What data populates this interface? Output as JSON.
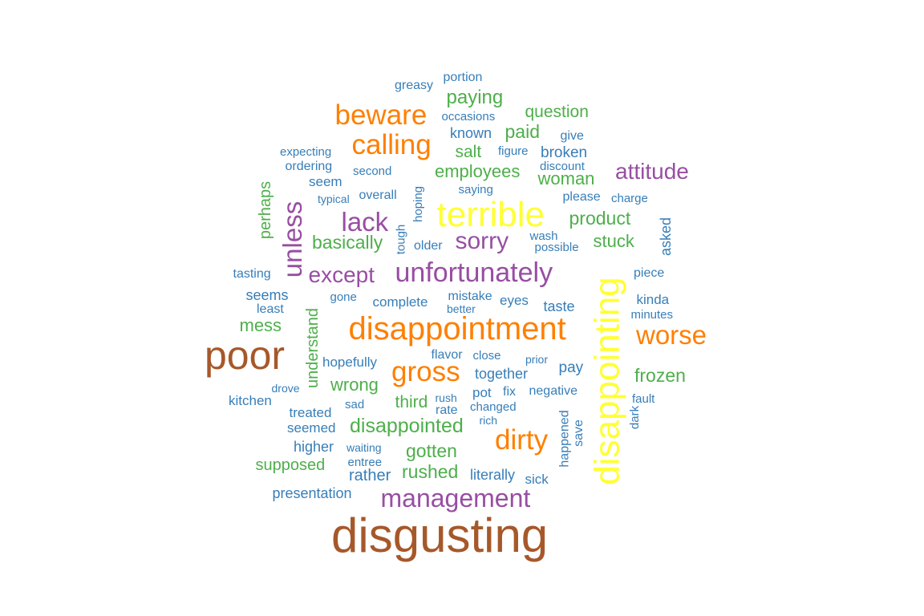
{
  "palette": {
    "brown": "#A6582A",
    "yellow": "#FFFF33",
    "orange": "#FF7F00",
    "purple": "#984EA3",
    "green": "#4DAF4A",
    "blue": "#377EB8"
  },
  "words": [
    {
      "text": "disgusting",
      "color": "brown"
    },
    {
      "text": "poor",
      "color": "brown"
    },
    {
      "text": "terrible",
      "color": "yellow"
    },
    {
      "text": "disappointing",
      "color": "yellow"
    },
    {
      "text": "disappointment",
      "color": "orange"
    },
    {
      "text": "beware",
      "color": "orange"
    },
    {
      "text": "calling",
      "color": "orange"
    },
    {
      "text": "worse",
      "color": "orange"
    },
    {
      "text": "gross",
      "color": "orange"
    },
    {
      "text": "dirty",
      "color": "orange"
    },
    {
      "text": "unfortunately",
      "color": "purple"
    },
    {
      "text": "management",
      "color": "purple"
    },
    {
      "text": "unless",
      "color": "purple"
    },
    {
      "text": "lack",
      "color": "purple"
    },
    {
      "text": "sorry",
      "color": "purple"
    },
    {
      "text": "except",
      "color": "purple"
    },
    {
      "text": "attitude",
      "color": "purple"
    },
    {
      "text": "disappointed",
      "color": "green"
    },
    {
      "text": "paying",
      "color": "green"
    },
    {
      "text": "question",
      "color": "green"
    },
    {
      "text": "paid",
      "color": "green"
    },
    {
      "text": "salt",
      "color": "green"
    },
    {
      "text": "employees",
      "color": "green"
    },
    {
      "text": "woman",
      "color": "green"
    },
    {
      "text": "product",
      "color": "green"
    },
    {
      "text": "stuck",
      "color": "green"
    },
    {
      "text": "basically",
      "color": "green"
    },
    {
      "text": "perhaps",
      "color": "green"
    },
    {
      "text": "mess",
      "color": "green"
    },
    {
      "text": "understand",
      "color": "green"
    },
    {
      "text": "wrong",
      "color": "green"
    },
    {
      "text": "third",
      "color": "green"
    },
    {
      "text": "gotten",
      "color": "green"
    },
    {
      "text": "rushed",
      "color": "green"
    },
    {
      "text": "supposed",
      "color": "green"
    },
    {
      "text": "frozen",
      "color": "green"
    },
    {
      "text": "portion",
      "color": "blue"
    },
    {
      "text": "greasy",
      "color": "blue"
    },
    {
      "text": "occasions",
      "color": "blue"
    },
    {
      "text": "known",
      "color": "blue"
    },
    {
      "text": "give",
      "color": "blue"
    },
    {
      "text": "figure",
      "color": "blue"
    },
    {
      "text": "broken",
      "color": "blue"
    },
    {
      "text": "expecting",
      "color": "blue"
    },
    {
      "text": "ordering",
      "color": "blue"
    },
    {
      "text": "second",
      "color": "blue"
    },
    {
      "text": "discount",
      "color": "blue"
    },
    {
      "text": "seem",
      "color": "blue"
    },
    {
      "text": "typical",
      "color": "blue"
    },
    {
      "text": "overall",
      "color": "blue"
    },
    {
      "text": "hoping",
      "color": "blue"
    },
    {
      "text": "saying",
      "color": "blue"
    },
    {
      "text": "please",
      "color": "blue"
    },
    {
      "text": "charge",
      "color": "blue"
    },
    {
      "text": "tough",
      "color": "blue"
    },
    {
      "text": "older",
      "color": "blue"
    },
    {
      "text": "wash",
      "color": "blue"
    },
    {
      "text": "possible",
      "color": "blue"
    },
    {
      "text": "asked",
      "color": "blue"
    },
    {
      "text": "tasting",
      "color": "blue"
    },
    {
      "text": "piece",
      "color": "blue"
    },
    {
      "text": "seems",
      "color": "blue"
    },
    {
      "text": "least",
      "color": "blue"
    },
    {
      "text": "gone",
      "color": "blue"
    },
    {
      "text": "complete",
      "color": "blue"
    },
    {
      "text": "mistake",
      "color": "blue"
    },
    {
      "text": "better",
      "color": "blue"
    },
    {
      "text": "eyes",
      "color": "blue"
    },
    {
      "text": "taste",
      "color": "blue"
    },
    {
      "text": "kinda",
      "color": "blue"
    },
    {
      "text": "minutes",
      "color": "blue"
    },
    {
      "text": "hopefully",
      "color": "blue"
    },
    {
      "text": "flavor",
      "color": "blue"
    },
    {
      "text": "close",
      "color": "blue"
    },
    {
      "text": "prior",
      "color": "blue"
    },
    {
      "text": "together",
      "color": "blue"
    },
    {
      "text": "pay",
      "color": "blue"
    },
    {
      "text": "drove",
      "color": "blue"
    },
    {
      "text": "kitchen",
      "color": "blue"
    },
    {
      "text": "sad",
      "color": "blue"
    },
    {
      "text": "pot",
      "color": "blue"
    },
    {
      "text": "fix",
      "color": "blue"
    },
    {
      "text": "negative",
      "color": "blue"
    },
    {
      "text": "fault",
      "color": "blue"
    },
    {
      "text": "rush",
      "color": "blue"
    },
    {
      "text": "rate",
      "color": "blue"
    },
    {
      "text": "changed",
      "color": "blue"
    },
    {
      "text": "treated",
      "color": "blue"
    },
    {
      "text": "seemed",
      "color": "blue"
    },
    {
      "text": "rich",
      "color": "blue"
    },
    {
      "text": "happened",
      "color": "blue"
    },
    {
      "text": "save",
      "color": "blue"
    },
    {
      "text": "dark",
      "color": "blue"
    },
    {
      "text": "higher",
      "color": "blue"
    },
    {
      "text": "waiting",
      "color": "blue"
    },
    {
      "text": "entree",
      "color": "blue"
    },
    {
      "text": "rather",
      "color": "blue"
    },
    {
      "text": "literally",
      "color": "blue"
    },
    {
      "text": "sick",
      "color": "blue"
    },
    {
      "text": "presentation",
      "color": "blue"
    }
  ]
}
